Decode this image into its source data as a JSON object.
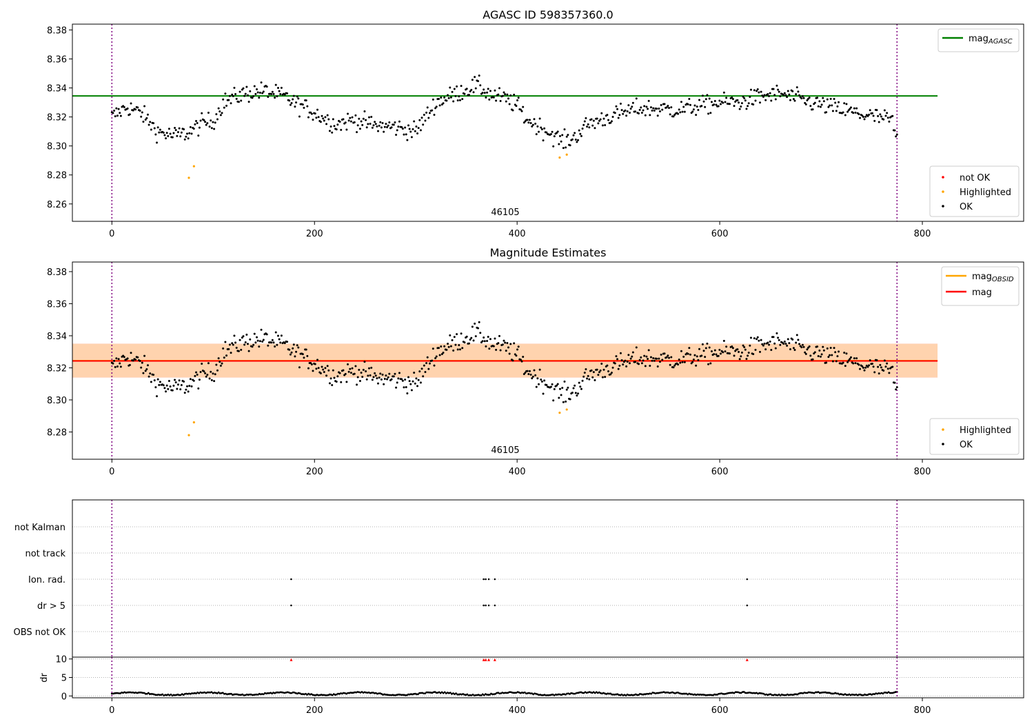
{
  "chart_data": [
    {
      "type": "scatter",
      "title": "AGASC ID 598357360.0",
      "xlabel": "",
      "ylabel": "",
      "xlim": [
        -39,
        900
      ],
      "ylim": [
        8.248,
        8.384
      ],
      "xticks": [
        "0",
        "200",
        "400",
        "600",
        "800"
      ],
      "yticks": [
        "8.26",
        "8.28",
        "8.30",
        "8.32",
        "8.34",
        "8.36",
        "8.38"
      ],
      "annotation": "46105",
      "vlines_x": [
        0,
        775
      ],
      "hlines": [
        {
          "name": "mag_AGASC",
          "y": 8.3345,
          "x_range": [
            -39,
            815
          ],
          "color": "#008000"
        }
      ],
      "legend_top": [
        {
          "label": "mag",
          "sub": "AGASC",
          "color": "#008000",
          "kind": "line"
        }
      ],
      "legend_bottom": [
        {
          "label": "not OK",
          "color": "#ff0000",
          "kind": "dot"
        },
        {
          "label": "Highlighted",
          "color": "#ffa500",
          "kind": "dot"
        },
        {
          "label": "OK",
          "color": "#000000",
          "kind": "dot"
        }
      ],
      "series": [
        {
          "name": "Highlighted",
          "color": "#ffa500",
          "points": [
            [
              76,
              8.278
            ],
            [
              81,
              8.286
            ],
            [
              442,
              8.292
            ],
            [
              449,
              8.294
            ]
          ]
        },
        {
          "name": "OK",
          "color": "#000000",
          "curve": [
            [
              0,
              8.32
            ],
            [
              15,
              8.327
            ],
            [
              30,
              8.322
            ],
            [
              45,
              8.31
            ],
            [
              60,
              8.307
            ],
            [
              75,
              8.309
            ],
            [
              90,
              8.316
            ],
            [
              100,
              8.317
            ],
            [
              110,
              8.33
            ],
            [
              130,
              8.336
            ],
            [
              150,
              8.338
            ],
            [
              170,
              8.334
            ],
            [
              180,
              8.33
            ],
            [
              200,
              8.323
            ],
            [
              220,
              8.315
            ],
            [
              240,
              8.318
            ],
            [
              260,
              8.314
            ],
            [
              280,
              8.313
            ],
            [
              300,
              8.31
            ],
            [
              320,
              8.33
            ],
            [
              340,
              8.336
            ],
            [
              360,
              8.342
            ],
            [
              375,
              8.335
            ],
            [
              390,
              8.332
            ],
            [
              400,
              8.328
            ],
            [
              410,
              8.318
            ],
            [
              430,
              8.31
            ],
            [
              445,
              8.303
            ],
            [
              455,
              8.305
            ],
            [
              470,
              8.315
            ],
            [
              490,
              8.32
            ],
            [
              520,
              8.326
            ],
            [
              560,
              8.325
            ],
            [
              600,
              8.33
            ],
            [
              620,
              8.33
            ],
            [
              640,
              8.334
            ],
            [
              660,
              8.336
            ],
            [
              690,
              8.33
            ],
            [
              720,
              8.325
            ],
            [
              745,
              8.321
            ],
            [
              770,
              8.318
            ],
            [
              775,
              8.303
            ]
          ],
          "spread": 0.0045,
          "count": 700
        }
      ]
    },
    {
      "type": "scatter",
      "title": "Magnitude Estimates",
      "xlabel": "",
      "ylabel": "",
      "xlim": [
        -39,
        900
      ],
      "ylim": [
        8.263,
        8.386
      ],
      "xticks": [
        "0",
        "200",
        "400",
        "600",
        "800"
      ],
      "yticks": [
        "8.28",
        "8.30",
        "8.32",
        "8.34",
        "8.36",
        "8.38"
      ],
      "annotation": "46105",
      "vlines_x": [
        0,
        775
      ],
      "hlines": [
        {
          "name": "mag_OBSID",
          "y": 8.3245,
          "x_range": [
            -39,
            815
          ],
          "color": "#ffa500"
        },
        {
          "name": "mag",
          "y": 8.3243,
          "x_range": [
            -39,
            815
          ],
          "color": "#ff0000"
        }
      ],
      "bands": [
        {
          "y0": 8.3138,
          "y1": 8.3352,
          "color": "#ffc0cb",
          "opacity": 0.45
        },
        {
          "y0": 8.314,
          "y1": 8.335,
          "color": "#ffa500",
          "opacity": 0.25
        }
      ],
      "legend_top": [
        {
          "label": "mag",
          "sub": "OBSID",
          "color": "#ffa500",
          "kind": "line"
        },
        {
          "label": "mag",
          "sub": "",
          "color": "#ff0000",
          "kind": "line"
        }
      ],
      "legend_bottom": [
        {
          "label": "Highlighted",
          "color": "#ffa500",
          "kind": "dot"
        },
        {
          "label": "OK",
          "color": "#000000",
          "kind": "dot"
        }
      ],
      "series": [
        {
          "name": "Highlighted",
          "color": "#ffa500",
          "points": [
            [
              76,
              8.278
            ],
            [
              81,
              8.286
            ],
            [
              442,
              8.292
            ],
            [
              449,
              8.294
            ]
          ]
        },
        {
          "name": "OK",
          "color": "#000000",
          "same_as_first_panel": true
        }
      ]
    },
    {
      "type": "scatter",
      "title": "",
      "xlabel": "",
      "ylabel": "",
      "xlim": [
        -39,
        900
      ],
      "xticks": [
        "0",
        "200",
        "400",
        "600",
        "800"
      ],
      "category_labels": [
        "not Kalman",
        "not track",
        "Ion. rad.",
        "dr > 5",
        "OBS not OK"
      ],
      "flag_points": {
        "Ion. rad.": [
          177,
          367,
          369,
          372,
          378,
          627
        ],
        "dr > 5": [
          177,
          367,
          369,
          372,
          378,
          627
        ]
      },
      "vlines_x": [
        0,
        775
      ]
    },
    {
      "type": "scatter",
      "title": "",
      "xlabel": "",
      "ylabel": "dr",
      "xlim": [
        -39,
        900
      ],
      "ylim": [
        -0.5,
        10.5
      ],
      "yticks": [
        "0",
        "5",
        "10"
      ],
      "vlines_x": [
        0,
        775
      ],
      "series": [
        {
          "name": "dr > 5",
          "color": "#ff0000",
          "points": [
            [
              177,
              9.8
            ],
            [
              367,
              9.8
            ],
            [
              369,
              9.8
            ],
            [
              372,
              9.8
            ],
            [
              378,
              9.8
            ],
            [
              627,
              9.8
            ]
          ]
        },
        {
          "name": "dr",
          "color": "#000000",
          "baseline": 0.6,
          "count": 560
        }
      ]
    }
  ]
}
